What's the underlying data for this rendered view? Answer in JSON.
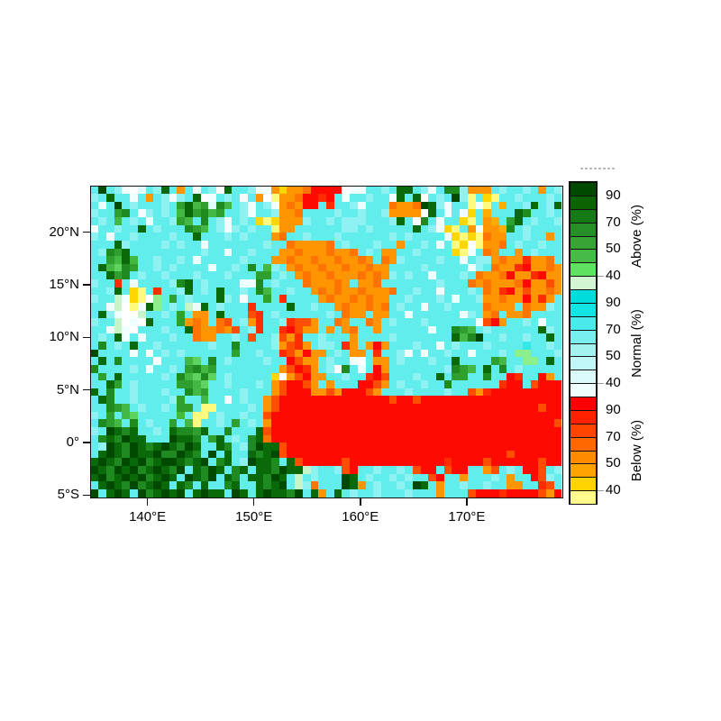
{
  "chart_data": {
    "type": "heatmap",
    "title": "",
    "x_axis": {
      "range": [
        134.7,
        178.9
      ],
      "ticks": [
        {
          "value": 140,
          "label": "140°E"
        },
        {
          "value": 150,
          "label": "150°E"
        },
        {
          "value": 160,
          "label": "160°E"
        },
        {
          "value": 170,
          "label": "170°E"
        }
      ]
    },
    "y_axis": {
      "range": [
        -5.15,
        24.35
      ],
      "ticks": [
        {
          "value": 20,
          "label": "20°N"
        },
        {
          "value": 15,
          "label": "15°N"
        },
        {
          "value": 10,
          "label": "10°N"
        },
        {
          "value": 5,
          "label": "5°N"
        },
        {
          "value": 0,
          "label": "0°"
        },
        {
          "value": -5,
          "label": "5°S"
        }
      ]
    },
    "grid": {
      "cols": 60,
      "rows": 40,
      "cell_palette": {
        "1": "#004A00",
        "2": "#0A6A0A",
        "3": "#1F8A1F",
        "4": "#2FA02F",
        "5": "#43B843",
        "6": "#5ED45E",
        "7": "#8BF08B",
        "8": "#C9F3C9",
        "a": "#00DCDC",
        "b": "#62EDED",
        "c": "#8FF2F2",
        "d": "#ADF6F6",
        "e": "#35E8E8",
        "f": "#C9F9F9",
        "g": "#DFFCFC",
        "h": "#EFFEFE",
        "W": "#FFFFFF",
        "r": "#FF0A00",
        "s": "#FF2D00",
        "t": "#FF4E00",
        "u": "#FF7300",
        "v": "#FF9500",
        "w": "#FFAC00",
        "x": "#FFD700",
        "y": "#FFF97D"
      },
      "rows_encoded": [
        "b1bchWgbc2bvbhbcW2bbchhvxvvurrrrWhhbbcb22bchb33cvvvbcbbcbvbc",
        "cb2bbhbvbchcb2WhbcbhbvWyvvurrsrbhbbcbbh2b2Wbcb1cybxybbcbbbcb",
        "bhb1bcbbbcb4254g35bchbchvuvrrbsbbchbbbuvvu12chbbyhybwbbc2bc2",
        "cbb43bhcbcb524354bbchbbcvvubbbbcbbcbbcvvvvW2bhbhxbwbbb23bbcb",
        "bcb5bcbhbbc45b3bchbcbxyxvvvcbbcbcccbbbc2bW3bhbbxybvwb42bcbbc",
        "hbbcbb2bcbbb345bchcbcbbyvvbbbbbbccbcbbbbb2bchxybvhvvw3bcbbbb",
        "cbhbbcbbbbcbb2bbbcbcbbbvubbcbbbcbbbbbbcbcbbbbhxyxyuvvbbcbbvb",
        "bbb2cbbbbcbcbbhbbbbbbbcbbuvvvvubcbbbcbbvbbcbhbyxWyvvubcbbcbb",
        "bc342bbbbbbbbbcbbhbbcbbbvvuvvvuvvubcbvvbbcbbbbxyhbuvbbvbcbbb",
        "bb4525bbcbbcbhbbbbbcbbbvvuvvuvvuvvuvbuvcbbbbcbbhbccvuvvsvvub",
        "b25634bbcbcbbbbhbbcb3b5cbvuvvuvvuvvuvvbbbbcbbbbbhcbuvvsrvvuv",
        "bb243bcbbcbbbcbbbcbbb44bcbvuvvuvvvuvuvcbcbbhbbbcbuvvurvvsrvv",
        "cbbsbhbbbbc32bcbbbbhh3bcbbbuvvvuvbvvubbbbbbbcbbbuvuvvvurvvtv",
        "bbc2bxybsbbc2bcb2bbcb35bbcbbvuvuvvuvvvubbcbbhbbbcbuvsrvtvvuv",
        "cbb8hxyW7b4bcbbb2cbhbb4bsbbbbvuvvuvuvvbbcbbbcbhbbcvvuvvrvsvb",
        "bbh8Wyh27bcb8h2bcbbbsbbbb2bbcbbvuvvuvubcbbhbbcbbbbuvvvbuvvcb",
        "b2chWW8bbcb4bvvb2bbbtsbcbbbbbbcbuvvbvvbbhbbbbbbhcbvubvvubbbb",
        "cbb8WhW2bbb4vuvbutbcvsbbcsttvbbuvbbuvbcbbbcbbbbbbhtrvbbcbhbb",
        "bbh8hWbbbcbb2uvvuvtbcsbbsrtvvbvbvubbvbbbbbbhbb345bcbbbbbb2cb",
        "bcb2hbhbbbcbbuvvbbcbtbbctvsbbcbbbvbbbbcbbbbbbb2531bbcbbcbb2b",
        "b3bcb2bbcbbbbbbcbb3bbbbcvtsvbccbsvbvrvbbbcbbhbcbbbcbbbbebbcb",
        "1bbbbhbWbcbcbbbbbb4bbcbbstvrvvbcbvvbsbbchbWbbcbbhbbbcb77bbbc",
        "b2b3bbbbWbbb56b3bcbbbbcbbrtvvbcbbhWbvvbcbbbcbb2bbbb45bb77b2b",
        "3bbbbcbhbbcb4354bbbbbbbbvtrsvbcW3bhbrvbbbbbbbc345b2b3bcbbbbb",
        "b4b2bbbbbcb35636bcbbbbbxWvtrvvbbcbbsrtbbbcbb2b44bb3bbrsbbrvb",
        "bb24bcbbbbb4456bbcbbbcbvtrrtvbvbbbrrtvbcbbcbb3bbbbbbsrrbtrrr",
        "2b3bbcbbbcbb354bbbbcbbbvtrrrvvtvrrrtvbbbcbbbbcbbtvsrrrrrrrrr",
        "b23bbcbbbbc4bb5bbhbcbbvtrrrrrrrrrrrrrrtrrtrrrrrrrrrrrrrrrrrr",
        "bb345bcbbcb44byybbbbcbvtrrrrrrrrrrrrrrrrrrrrrrrrrrrrrrrrrtrr",
        "cb4b56bbbbb5byybcbbcbbtrrrrrrrrrrrrrrrrrrrrrrrrrrrrrrrrrrrrr",
        "b345b3bcbb4b5ybbcb4bcbvrrrrrrrrrrrrrrrrrrrrrrrrrrrrrrrrrrrrt",
        "cb1232bbcb23342bb3bbb2trrrrrrrrrrrrrrrrrrrrrrrrrrrrrrrrrrrrr",
        "b323122bbb1223b42bcb32urrrrrrrrrrrrrrrrrrrrrrrrrrrrrrrrrrrrr",
        "bc123123212312bb23bc3122trrrrrrrrrrrrrrrrrrrrrrrrrrrrrrrrrrr",
        "b2123122133123b1b2bb2321trrrrrrrrrrrrrrrrrrrrrrrrrrrrtrrrrrr",
        "212312132112321b32bc1223b2trrrrrtrrrrrrrrrrrrsrrrrtrrrrrrtrr",
        "123121321231b2312b32b2231228cbbctrbbcbbcbtrrbtrrbbvtbcbrrtbc",
        "21321213212b1231b23b22312b8bcbbb12bcbbcbcbbtrbbvbbbcbvbbrtcb",
        "b212313212b23b2bb32bb2321b8cubbb12vbcbbcb12bvbbcbbcbbvvbbstb",
        "1b212b132121b2122b12b212231b2vb2bcbbcbbbcbbbvbbbtrrrsrrrrtvr"
      ]
    },
    "colorbar": {
      "tick_labels": [
        "90",
        "70",
        "50",
        "40"
      ],
      "tick_after_segment": [
        1,
        3,
        5,
        7
      ],
      "sections": [
        {
          "title": "Above (%)",
          "colors": [
            "#004A00",
            "#0B6400",
            "#167A16",
            "#268F26",
            "#36A536",
            "#46BB46",
            "#5FE25F",
            "#D2F5D2"
          ]
        },
        {
          "title": "Normal (%)",
          "colors": [
            "#00DCDC",
            "#12E4E4",
            "#4AEAEA",
            "#78EEEE",
            "#A2F2F2",
            "#C0F6F6",
            "#DAFAFA",
            "#EFFDFD"
          ]
        },
        {
          "title": "Below (%)",
          "colors": [
            "#FF0000",
            "#FF2000",
            "#FF4500",
            "#FF6700",
            "#FF8C00",
            "#FFA300",
            "#FFD300",
            "#FFFB8C"
          ]
        }
      ]
    }
  }
}
